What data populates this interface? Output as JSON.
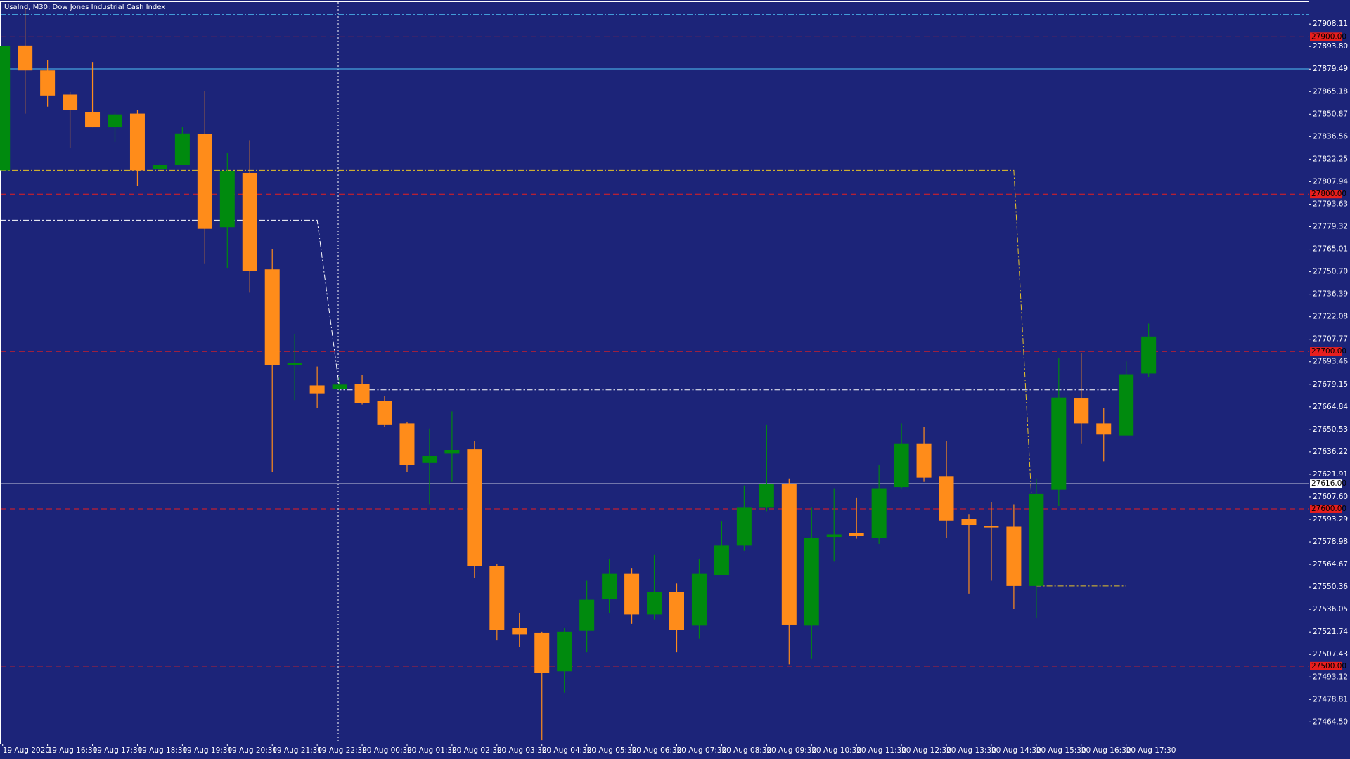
{
  "chart_data": {
    "type": "candlestick",
    "title": "UsaInd, M30:  Dow Jones Industrial Cash Index",
    "background": "#1c2479",
    "up_color": "#008a0e",
    "down_color": "#ff8c1a",
    "categories": [
      "19 Aug 2020",
      null,
      "19 Aug 16:30",
      null,
      "19 Aug 17:30",
      null,
      "19 Aug 18:30",
      null,
      "19 Aug 19:30",
      null,
      "19 Aug 20:30",
      null,
      "19 Aug 21:30",
      null,
      "19 Aug 22:30",
      null,
      "20 Aug 00:30",
      null,
      "20 Aug 01:30",
      null,
      "20 Aug 02:30",
      null,
      "20 Aug 03:30",
      null,
      "20 Aug 04:30",
      null,
      "20 Aug 05:30",
      null,
      "20 Aug 06:30",
      null,
      "20 Aug 07:30",
      null,
      "20 Aug 08:30",
      null,
      "20 Aug 09:30",
      null,
      "20 Aug 10:30",
      null,
      "20 Aug 11:30",
      null,
      "20 Aug 12:30",
      null,
      "20 Aug 13:30",
      null,
      "20 Aug 14:30",
      null,
      "20 Aug 15:30",
      null,
      "20 Aug 16:30",
      null,
      "20 Aug 17:30",
      null
    ],
    "open": [
      27815.1,
      27894.4,
      27878.6,
      27863.3,
      27852.3,
      27842.5,
      27851.2,
      27815.7,
      27818.4,
      27838.1,
      27779.0,
      27813.5,
      27752.2,
      27691.5,
      27678.4,
      27676.2,
      27679.4,
      27668.5,
      27654.3,
      27629.1,
      27635.1,
      27637.9,
      27563.5,
      27524.1,
      27521.4,
      27496.7,
      27522.4,
      27542.7,
      27558.6,
      27532.8,
      27547.1,
      27525.7,
      27558.0,
      27576.6,
      27600.7,
      27616.0,
      27525.7,
      27582.1,
      27584.8,
      27581.5,
      27613.8,
      27641.2,
      27620.4,
      27593.6,
      27589.2,
      27588.6,
      27550.9,
      27612.2,
      27670.1,
      27654.3,
      27646.6,
      27686.0
    ],
    "high": [
      27893.9,
      27918.0,
      27885.1,
      27864.9,
      27884.0,
      27852.3,
      27853.4,
      27819.5,
      27842.5,
      27865.4,
      27826.1,
      27834.3,
      27764.8,
      27711.2,
      27690.4,
      27683.8,
      27684.9,
      27671.8,
      27655.4,
      27651.0,
      27661.9,
      27643.3,
      27565.1,
      27533.9,
      27521.9,
      27524.1,
      27554.2,
      27567.8,
      27562.4,
      27570.6,
      27552.5,
      27567.8,
      27591.9,
      27614.9,
      27653.2,
      27619.3,
      27600.7,
      27612.7,
      27607.2,
      27628.0,
      27654.3,
      27652.1,
      27643.3,
      27596.3,
      27604.0,
      27602.9,
      27619.3,
      27695.9,
      27699.1,
      27664.1,
      27693.7,
      27717.7
    ],
    "low": [
      27815.1,
      27851.2,
      27855.6,
      27829.3,
      27842.5,
      27833.2,
      27805.3,
      27815.1,
      27818.4,
      27756.0,
      27752.8,
      27737.4,
      27623.6,
      27669.1,
      27664.1,
      27675.1,
      27666.3,
      27652.1,
      27623.6,
      27602.9,
      27617.1,
      27555.8,
      27516.4,
      27512.1,
      27453.0,
      27483.1,
      27508.8,
      27533.9,
      27526.8,
      27529.6,
      27508.8,
      27517.5,
      27558.0,
      27573.3,
      27598.5,
      27501.1,
      27504.9,
      27566.8,
      27581.0,
      27577.7,
      27612.7,
      27617.1,
      27581.5,
      27546.0,
      27554.2,
      27536.1,
      27530.7,
      27601.8,
      27641.2,
      27630.2,
      27646.6,
      27683.8
    ],
    "close": [
      27893.9,
      27878.6,
      27862.7,
      27853.4,
      27842.5,
      27850.7,
      27815.1,
      27818.4,
      27838.6,
      27777.9,
      27814.6,
      27751.1,
      27691.5,
      27692.6,
      27673.4,
      27678.9,
      27667.4,
      27653.2,
      27628.0,
      27633.5,
      27637.3,
      27563.5,
      27523.0,
      27520.3,
      27495.6,
      27521.9,
      27542.1,
      27558.6,
      27532.8,
      27547.1,
      27523.0,
      27558.6,
      27576.6,
      27600.7,
      27616.0,
      27526.3,
      27581.5,
      27583.7,
      27582.6,
      27612.7,
      27641.2,
      27619.8,
      27592.5,
      27589.7,
      27588.1,
      27550.9,
      27609.4,
      27670.7,
      27654.3,
      27647.2,
      27685.5,
      27709.5
    ],
    "lines": [
      {
        "color": "#e6c229",
        "dash": "dashdot",
        "values": [
          27815.1,
          27815.1,
          27815.1,
          27815.1,
          27815.1,
          27815.1,
          27815.1,
          27815.1,
          27815.1,
          27815.1,
          27815.1,
          27815.1,
          27815.1,
          27815.1,
          27815.1,
          27815.1,
          27815.1,
          27815.1,
          27815.1,
          27815.1,
          27815.1,
          27815.1,
          27815.1,
          27815.1,
          27815.1,
          27815.1,
          27815.1,
          27815.1,
          27815.1,
          27815.1,
          27815.1,
          27815.1,
          27815.1,
          27815.1,
          27815.1,
          27815.1,
          27815.1,
          27815.1,
          27815.1,
          27815.1,
          27815.1,
          27815.1,
          27815.1,
          27815.1,
          27815.1,
          27815.1,
          27550.9,
          27550.9,
          27550.9,
          27550.9,
          27550.9,
          null
        ]
      },
      {
        "color": "#ffffff",
        "dash": "dashdot",
        "values": [
          27783.4,
          27783.4,
          27783.4,
          27783.4,
          27783.4,
          27783.4,
          27783.4,
          27783.4,
          27783.4,
          27783.4,
          27783.4,
          27783.4,
          27783.4,
          27783.4,
          27783.4,
          27675.6,
          27675.6,
          27675.6,
          27675.6,
          27675.6,
          27675.6,
          27675.6,
          27675.6,
          27675.6,
          27675.6,
          27675.6,
          27675.6,
          27675.6,
          27675.6,
          27675.6,
          27675.6,
          27675.6,
          27675.6,
          27675.6,
          27675.6,
          27675.6,
          27675.6,
          27675.6,
          27675.6,
          27675.6,
          27675.6,
          27675.6,
          27675.6,
          27675.6,
          27675.6,
          27675.6,
          27675.6,
          27675.6,
          27675.6,
          27675.6,
          27675.6,
          null
        ]
      }
    ],
    "levels": [
      {
        "value": 27914.1,
        "color": "#4fc3f7",
        "dash": "dashdot"
      },
      {
        "value": 27900,
        "label": "27900.00",
        "color": "#e81e1e",
        "dash": "dashed"
      },
      {
        "value": 27879.6,
        "color": "#4fc3f7",
        "dash": "solid"
      },
      {
        "value": 27800,
        "label": "27800.00",
        "color": "#e81e1e",
        "dash": "dashed"
      },
      {
        "value": 27700,
        "label": "27700.00",
        "color": "#e81e1e",
        "dash": "dashed"
      },
      {
        "value": 27616,
        "label": "27616.00",
        "color": "#ffffff",
        "dash": "solid"
      },
      {
        "value": 27600,
        "label": "27600.00",
        "color": "#e81e1e",
        "dash": "dashed"
      },
      {
        "value": 27500,
        "label": "27500.00",
        "color": "#e81e1e",
        "dash": "dashed"
      }
    ],
    "ylim": [
      27450.8,
      27922.3
    ],
    "yticks": [
      {
        "value": 27908.11,
        "label": "27908.11"
      },
      {
        "value": 27893.8,
        "label": "27893.80"
      },
      27879.49,
      27865.18,
      27850.87,
      27836.56,
      27822.25,
      27807.94,
      27793.63,
      27779.32,
      27765.01,
      {
        "value": 27750.7,
        "label": "27750.70"
      },
      27736.39,
      27722.08,
      27707.77,
      27693.46,
      27679.15,
      27664.84,
      27650.53,
      27636.22,
      27621.91,
      {
        "value": 27607.6,
        "label": "27607.60"
      },
      27593.29,
      27578.98,
      27564.67,
      27550.36,
      27536.05,
      27521.74,
      27507.43,
      27493.12,
      27478.81,
      {
        "value": 27464.5,
        "label": "27464.50"
      }
    ]
  }
}
